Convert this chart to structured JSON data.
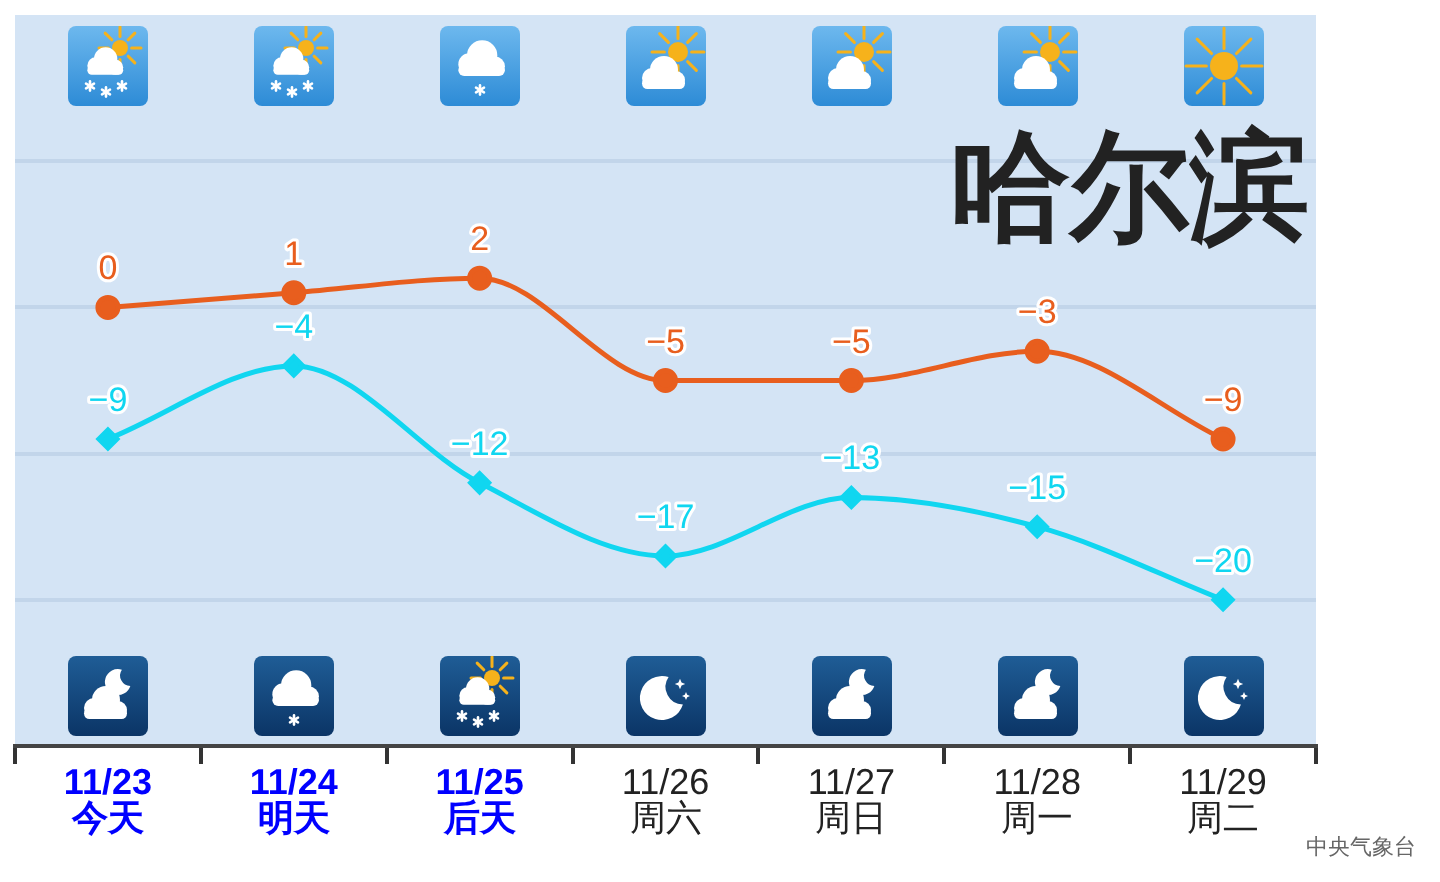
{
  "chart_data": {
    "type": "line",
    "title": "哈尔滨",
    "annotations": [
      "中央气象台"
    ],
    "categories": [
      "11/23\n今天",
      "11/24\n明天",
      "11/25\n后天",
      "11/26\n周六",
      "11/27\n周日",
      "11/28\n周一",
      "11/29\n周二"
    ],
    "series": [
      {
        "color": "#e85e1e",
        "marker": "circle",
        "values": [
          0,
          1,
          2,
          -5,
          -5,
          -3,
          -9
        ]
      },
      {
        "color": "#10d6f0",
        "marker": "diamond",
        "values": [
          -9,
          -4,
          -12,
          -17,
          -13,
          -15,
          -20
        ]
      }
    ],
    "ylim": [
      -30,
      20
    ],
    "yticks": [
      {
        "value": -20,
        "label": null
      },
      {
        "value": -10,
        "label": null
      },
      {
        "value": 0,
        "label": null
      },
      {
        "value": 10,
        "label": null
      }
    ],
    "grid": "y",
    "tick_labels": "x",
    "data_labels": true,
    "legend": false
  }
}
